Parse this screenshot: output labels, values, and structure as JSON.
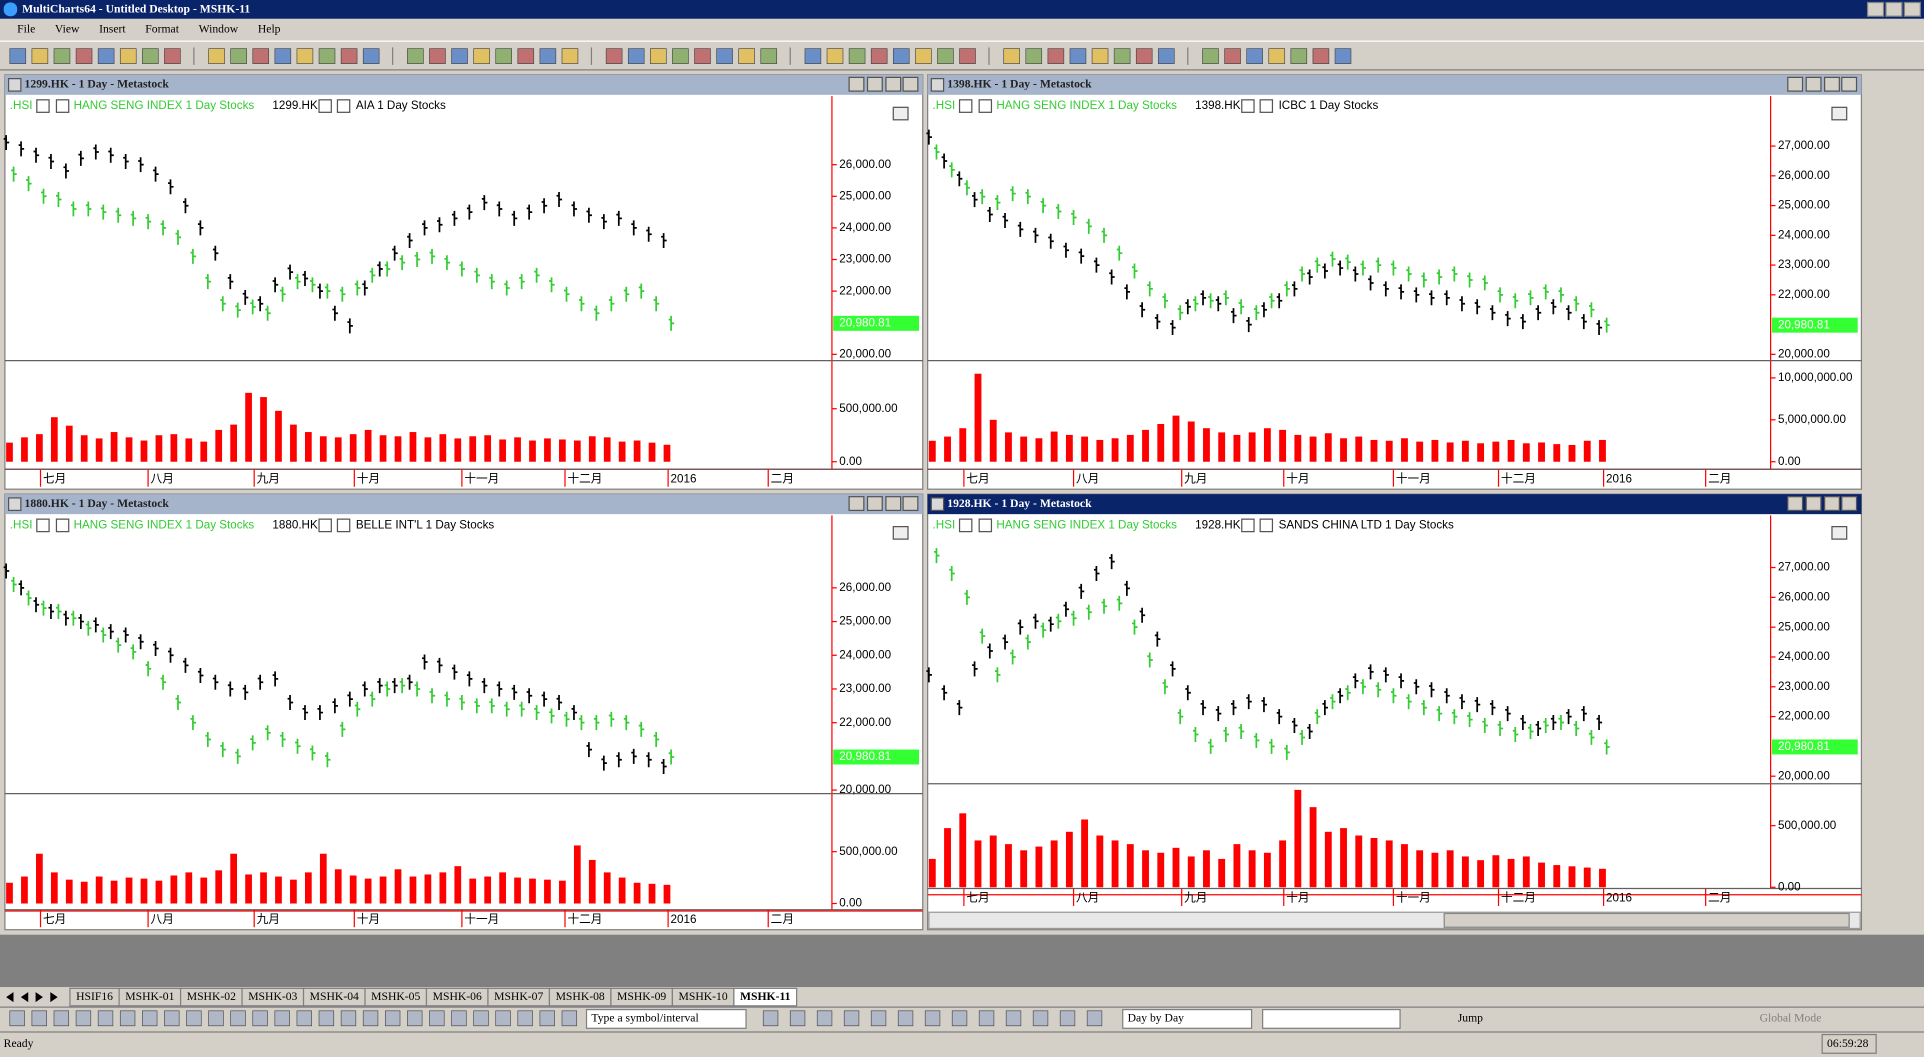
{
  "window": {
    "title": "MultiCharts64 - Untitled Desktop - MSHK-11"
  },
  "menu": [
    "File",
    "View",
    "Insert",
    "Format",
    "Window",
    "Help"
  ],
  "chart_data": [
    {
      "type": "ohlc",
      "title": "1299.HK - 1 Day - Metastock",
      "active": false,
      "months": [
        "七月",
        "八月",
        "九月",
        "十月",
        "十一月",
        "十二月",
        "2016",
        "二月"
      ],
      "ylim": [
        19840,
        28170
      ],
      "yticks": [
        {
          "value": 20000,
          "label": "20,000.00"
        },
        {
          "value": 22000,
          "label": "22,000.00"
        },
        {
          "value": 23000,
          "label": "23,000.00"
        },
        {
          "value": 24000,
          "label": "24,000.00"
        },
        {
          "value": 25000,
          "label": "25,000.00"
        },
        {
          "value": 26000,
          "label": "26,000.00"
        }
      ],
      "volume_lim": [
        0,
        930000
      ],
      "volume_ticks": [
        {
          "value": 0,
          "label": "0.00"
        },
        {
          "value": 500000,
          "label": "500,000.00"
        }
      ],
      "series": [
        {
          "symbol": ".HSI",
          "name": "HANG SENG INDEX  1 Day  Stocks",
          "color": "#33cc33",
          "last_label": "20,980.81",
          "values": [
            25700,
            25400,
            25000,
            24900,
            24600,
            24600,
            24500,
            24400,
            24300,
            24200,
            24000,
            23700,
            23100,
            22300,
            21600,
            21400,
            21500,
            21300,
            21900,
            22300,
            22200,
            22000,
            21900,
            22100,
            22500,
            22700,
            22900,
            23000,
            23100,
            22900,
            22700,
            22500,
            22300,
            22100,
            22300,
            22500,
            22200,
            21900,
            21600,
            21300,
            21600,
            21900,
            22000,
            21600,
            20980.81
          ]
        },
        {
          "symbol": "1299.HK",
          "name": "AIA  1 Day  Stocks",
          "color": "#000000",
          "values": [
            26700,
            26500,
            26300,
            26100,
            25800,
            26200,
            26400,
            26300,
            26100,
            26000,
            25700,
            25300,
            24700,
            24000,
            23200,
            22300,
            21800,
            21600,
            22200,
            22600,
            22400,
            22000,
            21300,
            20900,
            22100,
            22700,
            23200,
            23600,
            24000,
            24100,
            24300,
            24500,
            24800,
            24600,
            24300,
            24500,
            24700,
            24900,
            24600,
            24400,
            24200,
            24300,
            24000,
            23800,
            23600
          ]
        },
        {
          "color": "#ff0000",
          "values": [
            180000,
            230000,
            260000,
            420000,
            340000,
            250000,
            220000,
            280000,
            230000,
            200000,
            250000,
            260000,
            220000,
            190000,
            300000,
            350000,
            650000,
            610000,
            480000,
            350000,
            280000,
            240000,
            230000,
            260000,
            300000,
            250000,
            240000,
            280000,
            230000,
            260000,
            220000,
            240000,
            250000,
            210000,
            230000,
            200000,
            220000,
            210000,
            200000,
            240000,
            230000,
            190000,
            200000,
            180000,
            160000
          ]
        }
      ]
    },
    {
      "type": "ohlc",
      "title": "1398.HK - 1 Day - Metastock",
      "active": false,
      "months": [
        "七月",
        "八月",
        "九月",
        "十月",
        "十一月",
        "十二月",
        "2016",
        "二月"
      ],
      "ylim": [
        19830,
        28680
      ],
      "yticks": [
        {
          "value": 20000,
          "label": "20,000.00"
        },
        {
          "value": 22000,
          "label": "22,000.00"
        },
        {
          "value": 23000,
          "label": "23,000.00"
        },
        {
          "value": 24000,
          "label": "24,000.00"
        },
        {
          "value": 25000,
          "label": "25,000.00"
        },
        {
          "value": 26000,
          "label": "26,000.00"
        },
        {
          "value": 27000,
          "label": "27,000.00"
        }
      ],
      "volume_lim": [
        0,
        11760000
      ],
      "volume_ticks": [
        {
          "value": 0,
          "label": "0.00"
        },
        {
          "value": 5000000,
          "label": "5,000,000.00"
        },
        {
          "value": 10000000,
          "label": "10,000,000.00"
        }
      ],
      "series": [
        {
          "symbol": ".HSI",
          "name": "HANG SENG INDEX  1 Day  Stocks",
          "color": "#33cc33",
          "last_label": "20,980.81",
          "values": [
            26800,
            26200,
            25600,
            25300,
            25100,
            25400,
            25300,
            25000,
            24800,
            24600,
            24300,
            24000,
            23400,
            22800,
            22200,
            21800,
            21400,
            21700,
            21800,
            21900,
            21600,
            21400,
            21800,
            22200,
            22700,
            23000,
            23200,
            23100,
            22900,
            23000,
            22900,
            22700,
            22500,
            22600,
            22700,
            22500,
            22400,
            22000,
            21800,
            21900,
            22100,
            22000,
            21700,
            21500,
            20980.81
          ]
        },
        {
          "symbol": "1398.HK",
          "name": "ICBC  1 Day  Stocks",
          "color": "#000000",
          "values": [
            27300,
            26500,
            25900,
            25200,
            24700,
            24500,
            24200,
            24000,
            23800,
            23500,
            23300,
            23000,
            22600,
            22100,
            21500,
            21100,
            20900,
            21600,
            21900,
            21700,
            21300,
            21000,
            21500,
            21800,
            22200,
            22600,
            22800,
            22900,
            22700,
            22400,
            22200,
            22100,
            22000,
            21900,
            21900,
            21700,
            21600,
            21400,
            21200,
            21100,
            21400,
            21600,
            21400,
            21100,
            20900
          ]
        },
        {
          "color": "#ff0000",
          "values": [
            2500000,
            3000000,
            4000000,
            10500000,
            5000000,
            3500000,
            3000000,
            2800000,
            3600000,
            3200000,
            3000000,
            2600000,
            2800000,
            3200000,
            3800000,
            4500000,
            5500000,
            4800000,
            4000000,
            3500000,
            3200000,
            3500000,
            4000000,
            3800000,
            3200000,
            3000000,
            3400000,
            2800000,
            3000000,
            2600000,
            2500000,
            2800000,
            2400000,
            2600000,
            2300000,
            2500000,
            2200000,
            2400000,
            2600000,
            2200000,
            2300000,
            2100000,
            2000000,
            2500000,
            2600000
          ]
        }
      ]
    },
    {
      "type": "ohlc",
      "title": "1880.HK - 1 Day - Metastock",
      "active": false,
      "months": [
        "七月",
        "八月",
        "九月",
        "十月",
        "十一月",
        "十二月",
        "2016",
        "二月"
      ],
      "ylim": [
        19930,
        28150
      ],
      "yticks": [
        {
          "value": 20000,
          "label": "20,000.00"
        },
        {
          "value": 22000,
          "label": "22,000.00"
        },
        {
          "value": 23000,
          "label": "23,000.00"
        },
        {
          "value": 24000,
          "label": "24,000.00"
        },
        {
          "value": 25000,
          "label": "25,000.00"
        },
        {
          "value": 26000,
          "label": "26,000.00"
        }
      ],
      "volume_lim": [
        0,
        1035000
      ],
      "volume_ticks": [
        {
          "value": 0,
          "label": "0.00"
        },
        {
          "value": 500000,
          "label": "500,000.00"
        }
      ],
      "series": [
        {
          "symbol": ".HSI",
          "name": "HANG SENG INDEX  1 Day  Stocks",
          "color": "#33cc33",
          "last_label": "20,980.81",
          "values": [
            26100,
            25700,
            25400,
            25300,
            25100,
            24800,
            24600,
            24300,
            24100,
            23600,
            23200,
            22600,
            22000,
            21500,
            21200,
            21000,
            21400,
            21700,
            21500,
            21300,
            21100,
            20900,
            21800,
            22400,
            22700,
            23000,
            23100,
            23000,
            22800,
            22700,
            22600,
            22500,
            22500,
            22400,
            22400,
            22300,
            22200,
            22100,
            22000,
            22000,
            22100,
            22000,
            21800,
            21500,
            20980.81
          ]
        },
        {
          "symbol": "1880.HK",
          "name": "BELLE INT'L  1 Day  Stocks",
          "color": "#000000",
          "values": [
            26500,
            26000,
            25500,
            25300,
            25100,
            25000,
            24900,
            24700,
            24600,
            24400,
            24200,
            24000,
            23700,
            23400,
            23200,
            23000,
            22900,
            23200,
            23300,
            22600,
            22300,
            22300,
            22500,
            22700,
            23000,
            23100,
            23100,
            23200,
            23800,
            23700,
            23500,
            23300,
            23100,
            23000,
            22900,
            22800,
            22700,
            22600,
            22300,
            21200,
            20800,
            20900,
            21000,
            20900,
            20700
          ]
        },
        {
          "color": "#ff0000",
          "values": [
            200000,
            260000,
            480000,
            300000,
            230000,
            210000,
            260000,
            220000,
            250000,
            240000,
            220000,
            270000,
            300000,
            250000,
            320000,
            480000,
            280000,
            300000,
            260000,
            230000,
            300000,
            480000,
            330000,
            270000,
            240000,
            260000,
            330000,
            260000,
            280000,
            300000,
            360000,
            240000,
            260000,
            300000,
            250000,
            240000,
            230000,
            220000,
            560000,
            420000,
            300000,
            250000,
            200000,
            190000,
            180000
          ]
        }
      ]
    },
    {
      "type": "ohlc",
      "title": "1928.HK - 1 Day - Metastock",
      "active": true,
      "months": [
        "七月",
        "八月",
        "九月",
        "十月",
        "十一月",
        "十二月",
        "2016",
        "二月"
      ],
      "ylim": [
        19790,
        28750
      ],
      "yticks": [
        {
          "value": 20000,
          "label": "20,000.00"
        },
        {
          "value": 22000,
          "label": "22,000.00"
        },
        {
          "value": 23000,
          "label": "23,000.00"
        },
        {
          "value": 24000,
          "label": "24,000.00"
        },
        {
          "value": 25000,
          "label": "25,000.00"
        },
        {
          "value": 26000,
          "label": "26,000.00"
        },
        {
          "value": 27000,
          "label": "27,000.00"
        }
      ],
      "volume_lim": [
        0,
        820000
      ],
      "volume_ticks": [
        {
          "value": 0,
          "label": "0.00"
        },
        {
          "value": 500000,
          "label": "500,000.00"
        }
      ],
      "series": [
        {
          "symbol": ".HSI",
          "name": "HANG SENG INDEX  1 Day  Stocks",
          "color": "#33cc33",
          "last_label": "20,980.81",
          "values": [
            27400,
            26800,
            26000,
            24700,
            23400,
            24000,
            24500,
            24900,
            25200,
            25300,
            25500,
            25700,
            25800,
            25000,
            23900,
            23000,
            22000,
            21400,
            21000,
            21400,
            21500,
            21200,
            21000,
            20800,
            21300,
            22000,
            22500,
            22800,
            23000,
            22900,
            22700,
            22500,
            22300,
            22100,
            22000,
            21900,
            21700,
            21600,
            21400,
            21500,
            21700,
            21800,
            21600,
            21300,
            20980.81
          ]
        },
        {
          "symbol": "1928.HK",
          "name": "SANDS CHINA LTD  1 Day  Stocks",
          "color": "#000000",
          "values": [
            23400,
            22800,
            22300,
            23600,
            24200,
            24500,
            25000,
            25200,
            25100,
            25600,
            26200,
            26800,
            27200,
            26300,
            25400,
            24600,
            23600,
            22800,
            22300,
            22100,
            22300,
            22500,
            22400,
            22000,
            21700,
            21500,
            22300,
            22700,
            23200,
            23500,
            23400,
            23200,
            23000,
            22900,
            22700,
            22500,
            22400,
            22300,
            22100,
            21800,
            21600,
            21800,
            22000,
            22100,
            21800
          ]
        },
        {
          "color": "#ff0000",
          "values": [
            230000,
            480000,
            600000,
            380000,
            420000,
            350000,
            300000,
            330000,
            380000,
            450000,
            550000,
            420000,
            380000,
            350000,
            300000,
            280000,
            320000,
            250000,
            300000,
            230000,
            350000,
            300000,
            280000,
            380000,
            790000,
            650000,
            450000,
            480000,
            420000,
            400000,
            380000,
            350000,
            300000,
            280000,
            300000,
            250000,
            220000,
            260000,
            230000,
            250000,
            200000,
            180000,
            170000,
            160000,
            150000
          ]
        }
      ]
    }
  ],
  "tabs": [
    "HSIF16",
    "MSHK-01",
    "MSHK-02",
    "MSHK-03",
    "MSHK-04",
    "MSHK-05",
    "MSHK-06",
    "MSHK-07",
    "MSHK-08",
    "MSHK-09",
    "MSHK-10",
    "MSHK-11"
  ],
  "toolbar": {
    "symbol_box": "Type a symbol/interval",
    "mode_box": "Day by Day",
    "jump": "Jump",
    "global_mode": "Global Mode"
  },
  "status": {
    "text": "Ready",
    "time": "06:59:28"
  }
}
